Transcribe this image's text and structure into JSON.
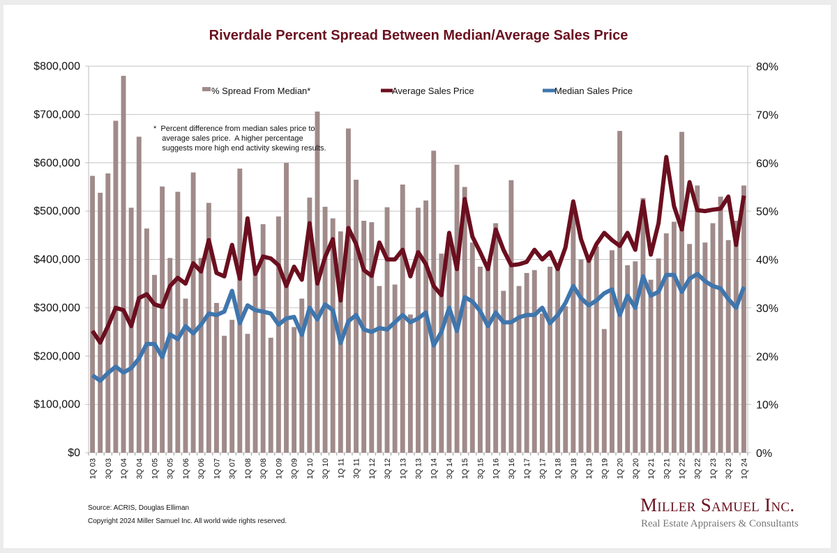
{
  "colors": {
    "bar": "#a08a8a",
    "average": "#6b0f1f",
    "median": "#3f76ad",
    "title": "#6b1220"
  },
  "footer": {
    "source": "Source: ACRIS, Douglas Elliman",
    "copyright": "Copyright 2024 Miller Samuel Inc.  All world wide rights reserved."
  },
  "logo": {
    "name": "Miller Samuel Inc.",
    "tagline": "Real Estate Appraisers & Consultants"
  },
  "chart_data": {
    "type": "bar+line",
    "title": "Riverdale Percent Spread Between Median/Average Sales Price",
    "note": "*  Percent difference from median sales price to\n    average sales price.  A higher percentage\n    suggests more high end activity skewing results.",
    "left_axis": {
      "ticks": [
        "$0",
        "$100,000",
        "$200,000",
        "$300,000",
        "$400,000",
        "$500,000",
        "$600,000",
        "$700,000",
        "$800,000"
      ],
      "range": [
        0,
        800000
      ]
    },
    "right_axis": {
      "ticks": [
        "0%",
        "10%",
        "20%",
        "30%",
        "40%",
        "50%",
        "60%",
        "70%",
        "80%"
      ],
      "range": [
        0,
        80
      ]
    },
    "grid": true,
    "legend_position": "top",
    "tick_labels": [
      "1Q 03",
      "3Q 03",
      "1Q 04",
      "3Q 04",
      "1Q 05",
      "3Q 05",
      "1Q 06",
      "3Q 06",
      "1Q 07",
      "3Q 07",
      "1Q 08",
      "3Q 08",
      "1Q 09",
      "3Q 09",
      "1Q 10",
      "3Q 10",
      "1Q 11",
      "3Q 11",
      "1Q 12",
      "3Q 12",
      "1Q 13",
      "3Q 13",
      "1Q 14",
      "3Q 14",
      "1Q 15",
      "3Q 15",
      "1Q 16",
      "3Q 16",
      "1Q 17",
      "3Q 17",
      "1Q 18",
      "3Q 18",
      "1Q 19",
      "3Q 19",
      "1Q 20",
      "3Q 20",
      "1Q 21",
      "3Q 21",
      "1Q 22",
      "3Q 22",
      "1Q 23",
      "3Q 23",
      "1Q 24"
    ],
    "series": [
      {
        "name": "% Spread From Median*",
        "axis": "right",
        "kind": "bar",
        "values": [
          57.3,
          53.8,
          57.8,
          68.7,
          78.0,
          50.7,
          65.4,
          46.4,
          36.8,
          55.1,
          40.3,
          54.0,
          31.9,
          58.0,
          40.3,
          51.7,
          31.0,
          24.2,
          27.5,
          58.8,
          24.6,
          38.7,
          47.3,
          23.8,
          48.9,
          60.0,
          26.0,
          31.9,
          52.8,
          70.6,
          50.9,
          48.5,
          45.8,
          67.1,
          56.5,
          48.0,
          47.7,
          34.5,
          50.8,
          34.8,
          55.5,
          28.6,
          50.7,
          52.2,
          62.5,
          41.2,
          45.2,
          59.6,
          55.0,
          43.5,
          38.5,
          38.5,
          47.5,
          33.5,
          56.4,
          34.5,
          37.2,
          37.8,
          28.8,
          38.5,
          38.8,
          30.3,
          49.8,
          40.0,
          40.6,
          42.7,
          25.6,
          41.9,
          66.6,
          38.8,
          39.6,
          52.7,
          35.8,
          40.2,
          45.4,
          47.8,
          66.4,
          43.2,
          55.3,
          43.5,
          47.5,
          53.0,
          44.0,
          48.0,
          55.3
        ]
      },
      {
        "name": "Average Sales Price",
        "axis": "left",
        "kind": "line",
        "values": [
          252000,
          228000,
          262000,
          300000,
          295000,
          262000,
          320000,
          328000,
          307000,
          302000,
          345000,
          362000,
          350000,
          392000,
          375000,
          440000,
          372000,
          365000,
          430000,
          360000,
          485000,
          370000,
          406000,
          402000,
          388000,
          345000,
          385000,
          358000,
          475000,
          350000,
          405000,
          442000,
          315000,
          465000,
          432000,
          378000,
          366000,
          435000,
          400000,
          400000,
          420000,
          365000,
          415000,
          390000,
          345000,
          326000,
          455000,
          380000,
          525000,
          447000,
          415000,
          380000,
          462000,
          420000,
          388000,
          390000,
          395000,
          420000,
          400000,
          415000,
          380000,
          425000,
          520000,
          442000,
          397000,
          432000,
          455000,
          440000,
          428000,
          455000,
          420000,
          520000,
          410000,
          475000,
          612000,
          510000,
          462000,
          560000,
          502000,
          500000,
          503000,
          505000,
          530000,
          430000,
          532000
        ]
      },
      {
        "name": "Median Sales Price",
        "axis": "left",
        "kind": "line",
        "values": [
          160000,
          149000,
          165000,
          178000,
          166000,
          175000,
          195000,
          225000,
          225000,
          198000,
          245000,
          235000,
          262000,
          247000,
          265000,
          288000,
          285000,
          292000,
          335000,
          268000,
          305000,
          295000,
          292000,
          288000,
          265000,
          278000,
          281000,
          244000,
          300000,
          276000,
          307000,
          295000,
          227000,
          272000,
          285000,
          255000,
          250000,
          258000,
          255000,
          270000,
          285000,
          270000,
          278000,
          290000,
          222000,
          250000,
          300000,
          252000,
          322000,
          313000,
          293000,
          262000,
          290000,
          270000,
          270000,
          280000,
          285000,
          285000,
          300000,
          268000,
          285000,
          310000,
          345000,
          320000,
          305000,
          315000,
          330000,
          338000,
          285000,
          325000,
          300000,
          365000,
          325000,
          333000,
          368000,
          368000,
          333000,
          360000,
          370000,
          355000,
          345000,
          340000,
          318000,
          300000,
          343000
        ]
      }
    ]
  }
}
